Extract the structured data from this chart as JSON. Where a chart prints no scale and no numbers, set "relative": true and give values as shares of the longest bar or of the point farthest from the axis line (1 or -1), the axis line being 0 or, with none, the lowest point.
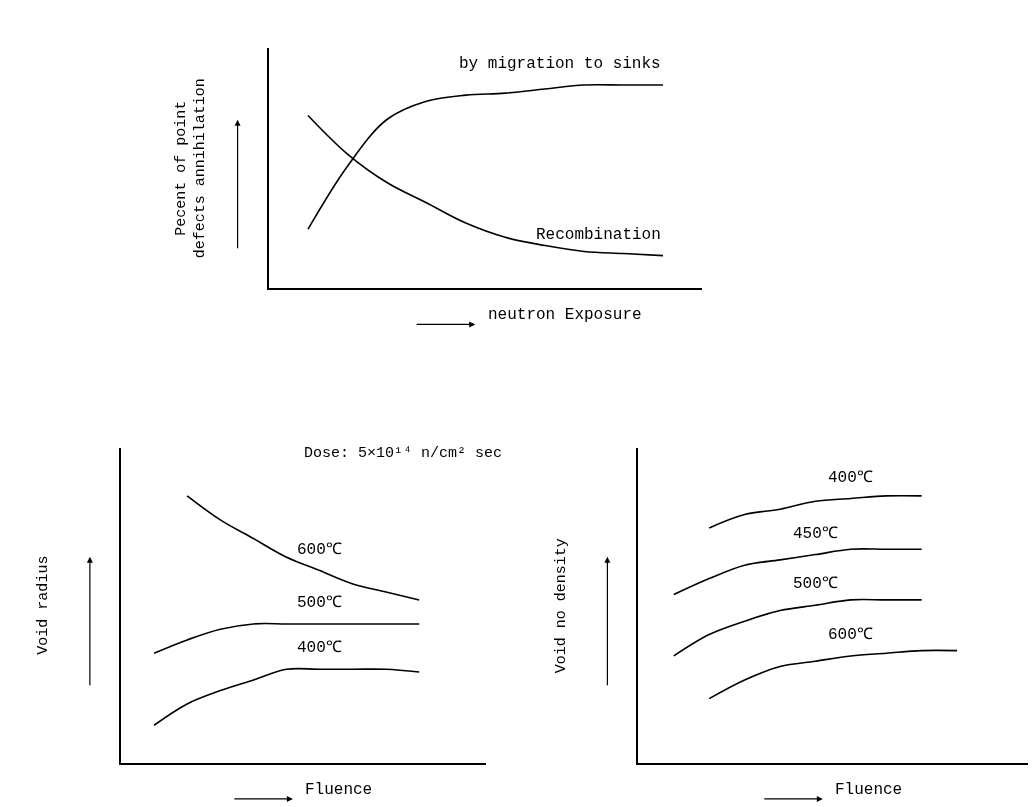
{
  "chart_data": [
    {
      "type": "line",
      "relative": true,
      "line_style": "solid",
      "xlabel": "neutron Exposure",
      "ylabel": "Pecent of point defects annihilation",
      "categories": [
        null,
        null,
        null,
        null,
        null,
        null,
        null,
        null,
        null,
        null,
        null,
        null
      ],
      "series": [
        {
          "name": "by migration to sinks",
          "color": "#000000",
          "values": [
            null,
            0.29,
            0.6,
            0.83,
            0.92,
            0.95,
            0.96,
            0.98,
            1.0,
            1.0,
            1.0,
            null
          ]
        },
        {
          "name": "Recombination",
          "color": "#000000",
          "values": [
            null,
            0.85,
            0.66,
            0.52,
            0.42,
            0.32,
            0.25,
            0.21,
            0.18,
            0.17,
            0.16,
            null
          ]
        }
      ]
    },
    {
      "type": "line",
      "relative": true,
      "line_style": "solid",
      "xlabel": "Fluence",
      "ylabel": "Void radius",
      "annotations": [
        "Dose: 5×10¹⁴ n/cm² sec"
      ],
      "categories": [
        null,
        null,
        null,
        null,
        null,
        null,
        null,
        null,
        null,
        null,
        null,
        null
      ],
      "series": [
        {
          "name": "600℃",
          "color": "#000000",
          "values": [
            null,
            null,
            1.0,
            0.91,
            0.84,
            0.77,
            0.72,
            0.67,
            0.64,
            0.61,
            null,
            null
          ]
        },
        {
          "name": "500℃",
          "color": "#000000",
          "values": [
            null,
            0.41,
            0.46,
            0.5,
            0.52,
            0.52,
            0.52,
            0.52,
            0.52,
            0.52,
            null,
            null
          ]
        },
        {
          "name": "400℃",
          "color": "#000000",
          "values": [
            null,
            0.14,
            0.22,
            0.27,
            0.31,
            0.35,
            0.35,
            0.35,
            0.35,
            0.34,
            null,
            null
          ]
        }
      ]
    },
    {
      "type": "line",
      "relative": true,
      "line_style": "solid",
      "xlabel": "Fluence",
      "ylabel": "Void no density",
      "categories": [
        null,
        null,
        null,
        null,
        null,
        null,
        null,
        null,
        null,
        null,
        null,
        null
      ],
      "series": [
        {
          "name": "400℃",
          "color": "#000000",
          "values": [
            null,
            null,
            0.88,
            0.93,
            0.95,
            0.98,
            0.99,
            1.0,
            1.0,
            null,
            null,
            null
          ]
        },
        {
          "name": "450℃",
          "color": "#000000",
          "values": [
            null,
            0.63,
            0.69,
            0.74,
            0.76,
            0.78,
            0.8,
            0.8,
            0.8,
            null,
            null,
            null
          ]
        },
        {
          "name": "500℃",
          "color": "#000000",
          "values": [
            null,
            0.4,
            0.48,
            0.53,
            0.57,
            0.59,
            0.61,
            0.61,
            0.61,
            null,
            null,
            null
          ]
        },
        {
          "name": "600℃",
          "color": "#000000",
          "values": [
            null,
            null,
            0.24,
            0.31,
            0.36,
            0.38,
            0.4,
            0.41,
            0.42,
            0.42,
            null,
            null
          ]
        }
      ]
    }
  ]
}
